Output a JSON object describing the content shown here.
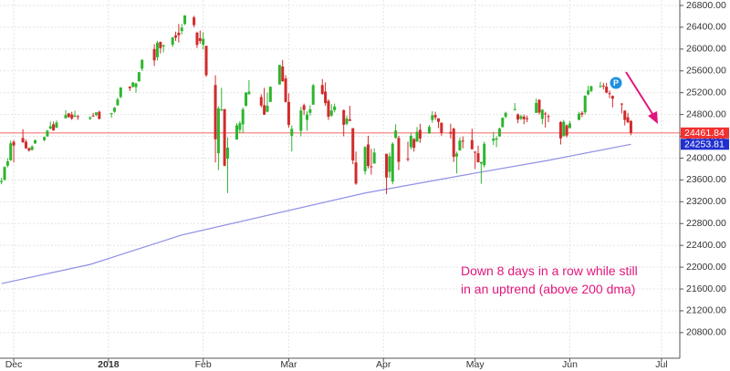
{
  "chart_data": {
    "type": "candlestick",
    "x": [
      -4,
      -3,
      -2,
      -1,
      0,
      3,
      4,
      5,
      6,
      7,
      10,
      11,
      12,
      13,
      14,
      17,
      18,
      19,
      20,
      21,
      25,
      26,
      27,
      28,
      32,
      33,
      34,
      35,
      38,
      39,
      40,
      41,
      42,
      46,
      47,
      48,
      49,
      52,
      53,
      54,
      55,
      56,
      59,
      60,
      61,
      62,
      63,
      66,
      67,
      68,
      69,
      70,
      73,
      74,
      75,
      76,
      77,
      81,
      82,
      83,
      84,
      87,
      88,
      89,
      90,
      91,
      94,
      95,
      96,
      97,
      98,
      101,
      102,
      103,
      104,
      105,
      108,
      109,
      110,
      111,
      112,
      115,
      116,
      117,
      118,
      122,
      123,
      124,
      125,
      126,
      129,
      130,
      131,
      132,
      133,
      136,
      137,
      138,
      139,
      140,
      143,
      144,
      145,
      146,
      147,
      150,
      151,
      152,
      153,
      154,
      157,
      158,
      159,
      160,
      161,
      164,
      165,
      166,
      167,
      168,
      171,
      172,
      173,
      174,
      175,
      179,
      180,
      181,
      182,
      185,
      186,
      187,
      188,
      189,
      192,
      193,
      194,
      195,
      196,
      199,
      200,
      201,
      202
    ],
    "open": [
      23560,
      23600,
      23860,
      23960,
      24300,
      24370,
      24300,
      24180,
      24150,
      24270,
      24330,
      24400,
      24540,
      24620,
      24560,
      24730,
      24820,
      24800,
      24760,
      24770,
      24720,
      24780,
      24790,
      24850,
      24810,
      24850,
      24970,
      25120,
      25310,
      25310,
      25300,
      25410,
      25640,
      26000,
      25850,
      26130,
      26050,
      26080,
      26250,
      26300,
      26330,
      26460,
      26580,
      26300,
      26200,
      26080,
      26060,
      25340,
      24090,
      24890,
      24900,
      23990,
      24340,
      24520,
      24620,
      24960,
      25170,
      25120,
      24970,
      24850,
      25030,
      25350,
      25680,
      25460,
      25030,
      24410,
      24500,
      24970,
      24700,
      24830,
      24980,
      25340,
      25220,
      25050,
      24780,
      24880,
      24880,
      24630,
      24710,
      24550,
      23920,
      23760,
      24250,
      23850,
      23900,
      24080,
      23750,
      23570,
      24370,
      24370,
      23990,
      24200,
      24350,
      24300,
      24520,
      24450,
      24700,
      24790,
      24730,
      24650,
      24480,
      24540,
      24030,
      24140,
      24320,
      24330,
      24120,
      24090,
      23900,
      23870,
      24320,
      24340,
      24400,
      24570,
      24760,
      24880,
      24800,
      24720,
      24760,
      24730,
      24830,
      25070,
      24720,
      24820,
      24770,
      24660,
      24400,
      24600,
      24550,
      24700,
      24830,
      24840,
      25170,
      25230,
      25320,
      25330,
      25310,
      25190,
      25140,
      25000,
      24870,
      24750,
      24680
    ],
    "high": [
      23640,
      23850,
      24000,
      24320,
      24330,
      24530,
      24340,
      24200,
      24240,
      24340,
      24390,
      24520,
      24670,
      24670,
      24690,
      24880,
      24830,
      24850,
      24870,
      24790,
      24770,
      24830,
      24840,
      24870,
      24830,
      24940,
      25110,
      25300,
      25320,
      25400,
      25380,
      25580,
      25810,
      26090,
      26150,
      26140,
      26080,
      26220,
      26320,
      26460,
      26460,
      26620,
      26610,
      26320,
      26340,
      26310,
      26060,
      25520,
      24950,
      25290,
      24900,
      24380,
      24640,
      24680,
      24930,
      25210,
      25430,
      25170,
      25290,
      25200,
      25310,
      25710,
      25800,
      25520,
      25190,
      24600,
      24940,
      25000,
      24860,
      24970,
      25360,
      25450,
      25390,
      25080,
      24990,
      25000,
      24890,
      24780,
      24960,
      24550,
      24120,
      24220,
      24410,
      24170,
      24180,
      24080,
      24100,
      24290,
      24620,
      24410,
      24300,
      24460,
      24370,
      24570,
      24630,
      24610,
      24860,
      24850,
      24730,
      24650,
      24630,
      24560,
      24120,
      24380,
      24400,
      24540,
      24120,
      24230,
      23930,
      24300,
      24480,
      24400,
      24560,
      24750,
      24850,
      25010,
      24820,
      24800,
      24800,
      24780,
      25090,
      25080,
      24900,
      24850,
      24800,
      24680,
      24700,
      24620,
      24680,
      24850,
      24860,
      25150,
      25330,
      25330,
      25400,
      25380,
      25380,
      25240,
      25150,
      25010,
      24880,
      24830,
      24700
    ],
    "low": [
      23520,
      23590,
      23830,
      23950,
      23920,
      24280,
      24170,
      24120,
      24140,
      24260,
      24310,
      24390,
      24530,
      24500,
      24550,
      24730,
      24740,
      24700,
      24750,
      24700,
      24700,
      24760,
      24770,
      24710,
      24740,
      24830,
      24960,
      25100,
      25230,
      25290,
      25200,
      25400,
      25600,
      25690,
      25790,
      25920,
      25940,
      26040,
      26150,
      26120,
      26270,
      26440,
      26400,
      26020,
      26100,
      25990,
      25490,
      23920,
      23780,
      24860,
      23850,
      23360,
      24340,
      24460,
      24460,
      24950,
      25170,
      24930,
      24790,
      24840,
      25030,
      25350,
      25400,
      25020,
      24560,
      24120,
      24400,
      24790,
      24500,
      24780,
      24980,
      25160,
      24960,
      24700,
      24760,
      24840,
      24400,
      24600,
      24680,
      23890,
      23510,
      23700,
      23810,
      23700,
      23900,
      23340,
      23640,
      23520,
      24360,
      23780,
      23940,
      24160,
      24120,
      24300,
      24280,
      24450,
      24650,
      24700,
      24550,
      24410,
      24360,
      23930,
      23720,
      24140,
      24180,
      24160,
      23800,
      23920,
      23530,
      23830,
      24240,
      24200,
      24390,
      24560,
      24730,
      24880,
      24640,
      24700,
      24620,
      24660,
      24830,
      24800,
      24620,
      24560,
      24660,
      24250,
      24400,
      24380,
      24550,
      24700,
      24750,
      24800,
      25150,
      25210,
      25290,
      25260,
      25190,
      25100,
      24930,
      24820,
      24600,
      24640,
      24420
    ],
    "close": [
      23581,
      23837,
      23941,
      24272,
      24231,
      24290,
      24180,
      24140,
      24212,
      24329,
      24387,
      24504,
      24585,
      24509,
      24652,
      24792,
      24755,
      24726,
      24782,
      24754,
      24746,
      24775,
      24838,
      24719,
      24824,
      24922,
      25075,
      25296,
      25283,
      25386,
      25370,
      25575,
      25803,
      25793,
      26116,
      26017,
      26072,
      26214,
      26211,
      26252,
      26392,
      26617,
      26440,
      26077,
      26149,
      26187,
      25521,
      24346,
      24913,
      24893,
      23860,
      24191,
      24601,
      24640,
      24893,
      25201,
      25219,
      24964,
      24798,
      24962,
      25310,
      25709,
      25410,
      25029,
      24608,
      24538,
      24874,
      24884,
      24801,
      24895,
      25336,
      25179,
      25008,
      24759,
      24873,
      24947,
      24611,
      24727,
      24683,
      23958,
      23533,
      24202,
      23857,
      23849,
      24103,
      23644,
      24034,
      24264,
      24505,
      23933,
      23979,
      24408,
      24189,
      24483,
      24360,
      24573,
      24786,
      24748,
      24665,
      24463,
      24448,
      24024,
      24084,
      24322,
      24311,
      24163,
      24100,
      23925,
      23930,
      24263,
      24357,
      24361,
      24542,
      24740,
      24831,
      24900,
      24707,
      24769,
      24714,
      24715,
      25013,
      24835,
      24887,
      24812,
      24753,
      24362,
      24668,
      24416,
      24635,
      24814,
      24799,
      25146,
      25241,
      25317,
      25322,
      25320,
      25201,
      25175,
      25090,
      24988,
      24701,
      24657,
      24461.84
    ],
    "up_color": "#2fb52f",
    "down_color": "#d12b2b",
    "ma": {
      "x": [
        -4,
        25,
        55,
        115,
        151,
        175,
        202
      ],
      "values": [
        21700,
        22050,
        22590,
        23360,
        23725,
        23960,
        24253.81
      ],
      "color": "#8f8fe6"
    },
    "last_price_color": "#f23030",
    "xlim": [
      -4.5,
      218
    ],
    "xticks": [
      {
        "value": 0,
        "label": "Dec"
      },
      {
        "value": 31,
        "label": "2018"
      },
      {
        "value": 62,
        "label": "Feb"
      },
      {
        "value": 90,
        "label": "Mar"
      },
      {
        "value": 121,
        "label": "Apr"
      },
      {
        "value": 151,
        "label": "May"
      },
      {
        "value": 182,
        "label": "Jun"
      },
      {
        "value": 212,
        "label": "Jul"
      }
    ],
    "ylim": [
      20330,
      26900
    ],
    "yticks": [
      {
        "value": 20800,
        "label": "20800.00"
      },
      {
        "value": 21200,
        "label": "21200.00"
      },
      {
        "value": 21600,
        "label": "21600.00"
      },
      {
        "value": 22000,
        "label": "22000.00"
      },
      {
        "value": 22400,
        "label": "22400.00"
      },
      {
        "value": 22800,
        "label": "22800.00"
      },
      {
        "value": 23200,
        "label": "23200.00"
      },
      {
        "value": 23600,
        "label": "23600.00"
      },
      {
        "value": 24000,
        "label": "24000.00"
      },
      {
        "value": 24400,
        "label": "24400.00"
      },
      {
        "value": 24800,
        "label": "24800.00"
      },
      {
        "value": 25200,
        "label": "25200.00"
      },
      {
        "value": 25600,
        "label": "25600.00"
      },
      {
        "value": 26000,
        "label": "26000.00"
      },
      {
        "value": 26400,
        "label": "26400.00"
      },
      {
        "value": 26800,
        "label": "26800.00"
      }
    ],
    "grid": true,
    "annotation": [
      "Down 8 days in a row while still",
      "in an uptrend (above 200 dma)"
    ],
    "annotation_color": "#e0177c",
    "marker_label": "P"
  }
}
